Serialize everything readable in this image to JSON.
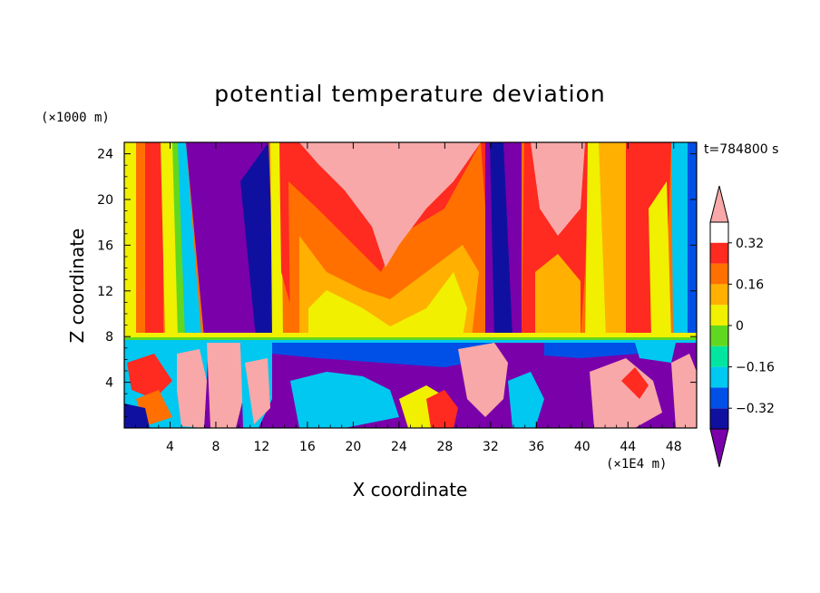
{
  "chart_data": {
    "type": "heatmap",
    "title": "potential temperature deviation",
    "xlabel": "X coordinate",
    "ylabel": "Z coordinate",
    "x_unit": "(×1E4 m)",
    "y_unit": "(×1000 m)",
    "time_label": "t=784800 s",
    "xlim": [
      0,
      50
    ],
    "ylim": [
      0,
      25
    ],
    "x_ticks": [
      4,
      8,
      12,
      16,
      20,
      24,
      28,
      32,
      36,
      40,
      44,
      48
    ],
    "y_ticks": [
      4,
      8,
      12,
      16,
      20,
      24
    ],
    "colorbar": {
      "levels": [
        -0.4,
        -0.32,
        -0.24,
        -0.16,
        -0.08,
        0,
        0.08,
        0.16,
        0.24,
        0.32,
        0.4
      ],
      "labels": [
        "0.32",
        "0.16",
        "0",
        "−0.16",
        "−0.32"
      ],
      "label_values": [
        0.32,
        0.16,
        0,
        -0.16,
        -0.32
      ],
      "colors": [
        "#7a00aa",
        "#1010a0",
        "#0050e8",
        "#00c8f0",
        "#00e6a0",
        "#60d820",
        "#f0f000",
        "#ffb000",
        "#ff7000",
        "#ff2a20",
        "#f8a8a8"
      ],
      "extend": "both"
    }
  }
}
